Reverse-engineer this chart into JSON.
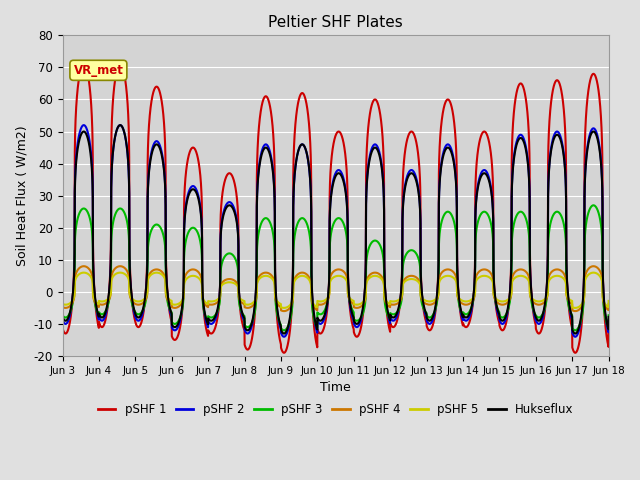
{
  "title": "Peltier SHF Plates",
  "ylabel": "Soil Heat Flux ( W/m2)",
  "xlabel": "Time",
  "ylim": [
    -20,
    80
  ],
  "xlim": [
    0,
    360
  ],
  "fig_facecolor": "#e0e0e0",
  "plot_facecolor": "#d4d4d4",
  "series_names": [
    "pSHF 1",
    "pSHF 2",
    "pSHF 3",
    "pSHF 4",
    "pSHF 5",
    "Hukseflux"
  ],
  "series_colors": [
    "#cc0000",
    "#0000dd",
    "#00bb00",
    "#cc7700",
    "#cccc00",
    "#000000"
  ],
  "series_lw": [
    1.5,
    1.5,
    1.5,
    1.5,
    1.5,
    1.5
  ],
  "xtick_labels": [
    "Jun 3",
    "Jun 4",
    "Jun 5",
    "Jun 6",
    "Jun 7",
    "Jun 8",
    "Jun 9",
    "Jun 10",
    "Jun 11",
    "Jun 12",
    "Jun 13",
    "Jun 14",
    "Jun 15",
    "Jun 16",
    "Jun 17",
    "Jun 18"
  ],
  "xtick_positions": [
    0,
    24,
    48,
    72,
    96,
    120,
    144,
    168,
    192,
    216,
    240,
    264,
    288,
    312,
    336,
    360
  ],
  "ytick_values": [
    -20,
    -10,
    0,
    10,
    20,
    30,
    40,
    50,
    60,
    70,
    80
  ],
  "annotation_text": "VR_met",
  "day_peaks_shf1": [
    71,
    71,
    64,
    45,
    37,
    61,
    62,
    50,
    60,
    50,
    60,
    50,
    65,
    66,
    68,
    70
  ],
  "day_troughs_shf1": [
    -13,
    -11,
    -11,
    -15,
    -13,
    -18,
    -19,
    -13,
    -14,
    -11,
    -12,
    -11,
    -12,
    -13,
    -19,
    -13
  ],
  "day_peaks_shf2": [
    52,
    52,
    47,
    33,
    28,
    46,
    46,
    38,
    46,
    38,
    46,
    38,
    49,
    50,
    51,
    51
  ],
  "day_troughs_shf2": [
    -10,
    -9,
    -9,
    -12,
    -10,
    -13,
    -14,
    -10,
    -11,
    -9,
    -10,
    -9,
    -10,
    -10,
    -14,
    -10
  ],
  "day_peaks_shf3": [
    26,
    26,
    21,
    20,
    12,
    23,
    23,
    23,
    16,
    13,
    25,
    25,
    25,
    25,
    27,
    27
  ],
  "day_troughs_shf3": [
    -8,
    -7,
    -7,
    -10,
    -8,
    -11,
    -12,
    -7,
    -9,
    -7,
    -8,
    -7,
    -8,
    -8,
    -12,
    -8
  ],
  "day_peaks_shf4": [
    8,
    8,
    7,
    7,
    4,
    6,
    6,
    7,
    6,
    5,
    7,
    7,
    7,
    7,
    8,
    8
  ],
  "day_troughs_shf4": [
    -5,
    -4,
    -4,
    -5,
    -4,
    -5,
    -6,
    -4,
    -5,
    -4,
    -4,
    -4,
    -4,
    -4,
    -6,
    -4
  ],
  "day_peaks_shf5": [
    6,
    6,
    6,
    5,
    3,
    5,
    5,
    5,
    5,
    4,
    5,
    5,
    5,
    5,
    6,
    6
  ],
  "day_troughs_shf5": [
    -4,
    -3,
    -3,
    -4,
    -3,
    -4,
    -5,
    -3,
    -4,
    -3,
    -3,
    -3,
    -3,
    -3,
    -5,
    -3
  ],
  "day_peaks_huks": [
    50,
    52,
    46,
    32,
    27,
    45,
    46,
    37,
    45,
    37,
    45,
    37,
    48,
    49,
    50,
    51
  ],
  "day_troughs_huks": [
    -9,
    -8,
    -8,
    -11,
    -9,
    -12,
    -13,
    -9,
    -10,
    -8,
    -9,
    -8,
    -9,
    -9,
    -13,
    -9
  ],
  "peak_hour": 14,
  "trough_hour": 4,
  "sharpness": 3.5
}
